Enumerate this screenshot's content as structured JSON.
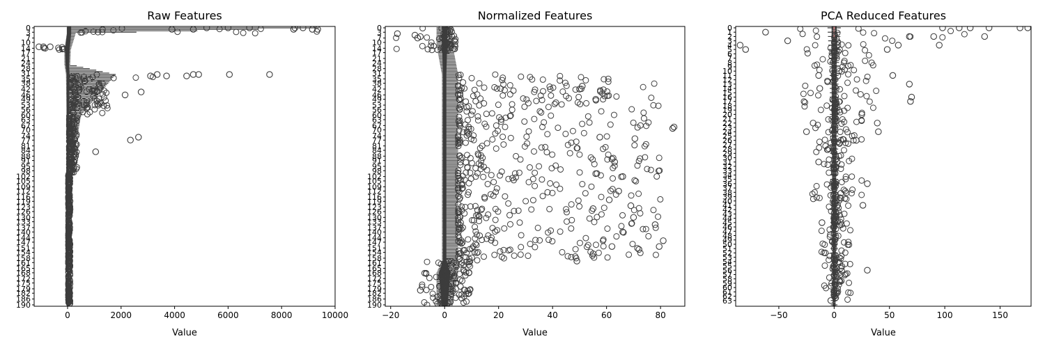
{
  "colors": {
    "box_stroke": "#3d3d3d",
    "frame": "#000000",
    "background": "#ffffff",
    "median": "#d58b8b"
  },
  "chart_data": [
    {
      "type": "boxplot",
      "orientation": "horizontal",
      "title": "Raw Features",
      "xlabel": "Value",
      "xlim": [
        -1250,
        10000
      ],
      "xticks": [
        0,
        2000,
        4000,
        6000,
        8000,
        10000
      ],
      "ytick_labels": [
        "0",
        "3",
        "7",
        "10",
        "14",
        "17",
        "21",
        "24",
        "28",
        "31",
        "35",
        "38",
        "42",
        "46",
        "49",
        "53",
        "56",
        "60",
        "63",
        "67",
        "70",
        "74",
        "77",
        "81",
        "84",
        "88",
        "91",
        "95",
        "98",
        "102",
        "105",
        "109",
        "112",
        "116",
        "119",
        "123",
        "126",
        "130",
        "133",
        "137",
        "140",
        "144",
        "147",
        "151",
        "154",
        "158",
        "161",
        "165",
        "168",
        "172",
        "175",
        "179",
        "182",
        "186",
        "190"
      ],
      "categories_count": 190,
      "profile": [
        {
          "pos": 0,
          "box_min": -10,
          "box_max": 120,
          "whisker_min": -30,
          "whisker_max": 9400
        },
        {
          "pos": 4,
          "box_min": -10,
          "box_max": 120,
          "whisker_min": -30,
          "whisker_max": 300
        },
        {
          "pos": 15,
          "box_min": -80,
          "box_max": 60,
          "whisker_min": -120,
          "whisker_max": 120
        },
        {
          "pos": 25,
          "box_min": -60,
          "box_max": 40,
          "whisker_min": -120,
          "whisker_max": 100
        },
        {
          "pos": 32,
          "box_min": -20,
          "box_max": 60,
          "whisker_min": -60,
          "whisker_max": 1800
        },
        {
          "pos": 60,
          "box_min": -20,
          "box_max": 40,
          "whisker_min": -40,
          "whisker_max": 500
        },
        {
          "pos": 100,
          "box_min": -10,
          "box_max": 25,
          "whisker_min": -25,
          "whisker_max": 150
        },
        {
          "pos": 150,
          "box_min": -8,
          "box_max": 20,
          "whisker_min": -20,
          "whisker_max": 80
        },
        {
          "pos": 190,
          "box_min": -8,
          "box_max": 15,
          "whisker_min": -20,
          "whisker_max": 60
        }
      ],
      "outlier_bands": [
        {
          "from": 0,
          "to": 4,
          "min": 300,
          "max": 9400
        },
        {
          "from": 13,
          "to": 15,
          "min": -1150,
          "max": -120
        },
        {
          "from": 32,
          "to": 36,
          "min": 150,
          "max": 3600
        },
        {
          "from": 36,
          "to": 60,
          "min": 100,
          "max": 1500
        },
        {
          "from": 60,
          "to": 100,
          "min": 60,
          "max": 350
        },
        {
          "from": 100,
          "to": 190,
          "min": 30,
          "max": 100
        }
      ],
      "sample_outliers": [
        {
          "cat": 0,
          "value": 5200
        },
        {
          "cat": 0,
          "value": 6000
        },
        {
          "cat": 0,
          "value": 6800
        },
        {
          "cat": 0,
          "value": 8500
        },
        {
          "cat": 0,
          "value": 8800
        },
        {
          "cat": 1,
          "value": 9150
        },
        {
          "cat": 1,
          "value": 9350
        },
        {
          "cat": 1,
          "value": 8450
        },
        {
          "cat": 1,
          "value": 4700
        },
        {
          "cat": 1,
          "value": 3900
        },
        {
          "cat": 13,
          "value": -1070
        },
        {
          "cat": 13,
          "value": -900
        },
        {
          "cat": 13,
          "value": -650
        },
        {
          "cat": 32,
          "value": 7550
        },
        {
          "cat": 32,
          "value": 6050
        },
        {
          "cat": 32,
          "value": 4900
        },
        {
          "cat": 32,
          "value": 4700
        },
        {
          "cat": 33,
          "value": 4450
        },
        {
          "cat": 33,
          "value": 3700
        },
        {
          "cat": 32,
          "value": 3350
        },
        {
          "cat": 33,
          "value": 3100
        },
        {
          "cat": 44,
          "value": 2750
        },
        {
          "cat": 46,
          "value": 2150
        },
        {
          "cat": 75,
          "value": 2650
        },
        {
          "cat": 77,
          "value": 2350
        },
        {
          "cat": 85,
          "value": 1050
        },
        {
          "cat": 53,
          "value": 1150
        }
      ]
    },
    {
      "type": "boxplot",
      "orientation": "horizontal",
      "title": "Normalized Features",
      "xlabel": "Value",
      "xlim": [
        -22,
        89
      ],
      "xticks": [
        -20,
        0,
        20,
        40,
        60,
        80
      ],
      "ytick_labels": [
        "0",
        "3",
        "7",
        "10",
        "14",
        "17",
        "21",
        "24",
        "28",
        "31",
        "35",
        "38",
        "42",
        "46",
        "49",
        "53",
        "56",
        "60",
        "63",
        "67",
        "70",
        "74",
        "77",
        "81",
        "84",
        "88",
        "91",
        "95",
        "98",
        "102",
        "105",
        "109",
        "112",
        "116",
        "119",
        "123",
        "126",
        "130",
        "133",
        "137",
        "140",
        "144",
        "147",
        "151",
        "154",
        "158",
        "161",
        "165",
        "168",
        "172",
        "175",
        "179",
        "182",
        "186",
        "190"
      ],
      "categories_count": 190,
      "profile": [
        {
          "pos": 0,
          "box_min": -0.8,
          "box_max": 0.8,
          "whisker_min": -3,
          "whisker_max": 3
        },
        {
          "pos": 12,
          "box_min": -0.8,
          "box_max": 0.8,
          "whisker_min": -3,
          "whisker_max": 3
        },
        {
          "pos": 32,
          "box_min": -0.5,
          "box_max": 0.5,
          "whisker_min": -1,
          "whisker_max": 5
        },
        {
          "pos": 160,
          "box_min": -0.5,
          "box_max": 0.5,
          "whisker_min": -1,
          "whisker_max": 5
        },
        {
          "pos": 168,
          "box_min": -2,
          "box_max": 2,
          "whisker_min": -3,
          "whisker_max": 5
        },
        {
          "pos": 190,
          "box_min": -1,
          "box_max": 1,
          "whisker_min": -3,
          "whisker_max": 3
        }
      ],
      "outlier_bands": [
        {
          "from": 0,
          "to": 16,
          "min": -18,
          "max": 6
        },
        {
          "from": 32,
          "to": 160,
          "min": 5,
          "max": 80
        },
        {
          "from": 160,
          "to": 190,
          "min": -9,
          "max": 10
        }
      ],
      "sample_outliers": [
        {
          "cat": 4,
          "value": -17.5
        },
        {
          "cat": 5,
          "value": -11
        },
        {
          "cat": 6,
          "value": -9
        },
        {
          "cat": 7,
          "value": -10
        },
        {
          "cat": 40,
          "value": 51
        },
        {
          "cat": 42,
          "value": 50
        },
        {
          "cat": 49,
          "value": 56
        },
        {
          "cat": 68,
          "value": 85
        },
        {
          "cat": 69,
          "value": 84.5
        },
        {
          "cat": 75,
          "value": 57.5
        },
        {
          "cat": 76,
          "value": 70.5
        },
        {
          "cat": 90,
          "value": 62
        },
        {
          "cat": 92,
          "value": 63
        },
        {
          "cat": 100,
          "value": 56
        },
        {
          "cat": 102,
          "value": 66
        },
        {
          "cat": 112,
          "value": 64.5
        },
        {
          "cat": 118,
          "value": 61
        },
        {
          "cat": 122,
          "value": 69
        },
        {
          "cat": 124,
          "value": 55
        },
        {
          "cat": 130,
          "value": 70
        },
        {
          "cat": 135,
          "value": 78
        },
        {
          "cat": 140,
          "value": 66
        },
        {
          "cat": 146,
          "value": 81
        },
        {
          "cat": 150,
          "value": 79.5
        },
        {
          "cat": 150,
          "value": 62
        },
        {
          "cat": 152,
          "value": 72
        },
        {
          "cat": 155,
          "value": 55
        },
        {
          "cat": 160,
          "value": 49
        },
        {
          "cat": 180,
          "value": -9
        },
        {
          "cat": 182,
          "value": 9
        }
      ]
    },
    {
      "type": "boxplot",
      "orientation": "horizontal",
      "title": "PCA Reduced Features",
      "xlabel": "Value",
      "xlim": [
        -89,
        178
      ],
      "xticks": [
        -50,
        0,
        50,
        100,
        150
      ],
      "ytick_labels": [
        "0",
        "1",
        "2",
        "3",
        "4",
        "5",
        "6",
        "7",
        "8",
        "9",
        "10",
        "11",
        "12",
        "13",
        "14",
        "15",
        "16",
        "17",
        "18",
        "19",
        "20",
        "21",
        "22",
        "23",
        "24",
        "25",
        "26",
        "27",
        "28",
        "29",
        "30",
        "31",
        "32",
        "33",
        "34",
        "35",
        "36",
        "37",
        "38",
        "39",
        "40",
        "41",
        "42",
        "43",
        "44",
        "45",
        "46",
        "47",
        "48",
        "49",
        "50",
        "51",
        "52",
        "53",
        "54",
        "55",
        "56",
        "57",
        "58",
        "59",
        "60",
        "61",
        "62",
        "63"
      ],
      "categories_count": 64,
      "profile": [
        {
          "pos": 0,
          "box_min": -2,
          "box_max": 2,
          "whisker_min": -6,
          "whisker_max": 6
        },
        {
          "pos": 10,
          "box_min": -2,
          "box_max": 2,
          "whisker_min": -4,
          "whisker_max": 4
        },
        {
          "pos": 63,
          "box_min": -1,
          "box_max": 1,
          "whisker_min": -3,
          "whisker_max": 3
        }
      ],
      "outlier_bands": [
        {
          "from": 0,
          "to": 3,
          "min": -40,
          "max": 120
        },
        {
          "from": 3,
          "to": 20,
          "min": -30,
          "max": 40
        },
        {
          "from": 20,
          "to": 40,
          "min": -20,
          "max": 25
        },
        {
          "from": 40,
          "to": 63,
          "min": -12,
          "max": 15
        }
      ],
      "sample_outliers": [
        {
          "cat": 0,
          "value": 168
        },
        {
          "cat": 0,
          "value": 175
        },
        {
          "cat": 0,
          "value": 140
        },
        {
          "cat": 0,
          "value": 123
        },
        {
          "cat": 0,
          "value": 113
        },
        {
          "cat": 0,
          "value": 98
        },
        {
          "cat": 1,
          "value": -62
        },
        {
          "cat": 2,
          "value": 136
        },
        {
          "cat": 2,
          "value": 90
        },
        {
          "cat": 2,
          "value": 68
        },
        {
          "cat": 3,
          "value": -42
        },
        {
          "cat": 4,
          "value": -85
        },
        {
          "cat": 4,
          "value": 95
        },
        {
          "cat": 4,
          "value": 58
        },
        {
          "cat": 5,
          "value": -80
        },
        {
          "cat": 5,
          "value": 48
        },
        {
          "cat": 11,
          "value": 53
        },
        {
          "cat": 11,
          "value": -14
        },
        {
          "cat": 13,
          "value": 68
        },
        {
          "cat": 14,
          "value": -13
        },
        {
          "cat": 16,
          "value": 70
        },
        {
          "cat": 17,
          "value": 69
        },
        {
          "cat": 20,
          "value": 25
        },
        {
          "cat": 22,
          "value": -19
        },
        {
          "cat": 22,
          "value": 39
        },
        {
          "cat": 24,
          "value": -25
        },
        {
          "cat": 24,
          "value": 40
        },
        {
          "cat": 26,
          "value": 20
        },
        {
          "cat": 31,
          "value": -14
        },
        {
          "cat": 36,
          "value": 30
        },
        {
          "cat": 41,
          "value": 26
        },
        {
          "cat": 45,
          "value": -11
        },
        {
          "cat": 52,
          "value": -8
        },
        {
          "cat": 56,
          "value": 30
        },
        {
          "cat": 63,
          "value": -3
        }
      ]
    }
  ]
}
